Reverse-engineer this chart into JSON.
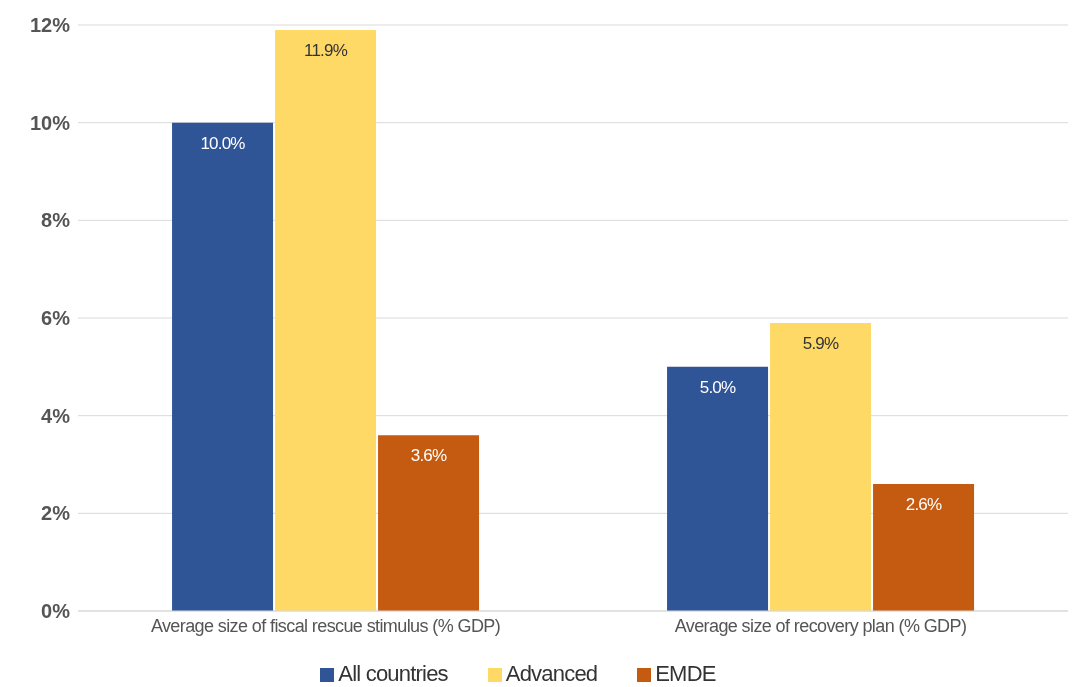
{
  "chart_data": {
    "type": "bar",
    "categories": [
      "Average size of fiscal rescue stimulus (% GDP)",
      "Average size of recovery plan (% GDP)"
    ],
    "series": [
      {
        "name": "All countries",
        "color": "#2f5597",
        "values": [
          10.0,
          5.0
        ],
        "value_labels": [
          "10.0%",
          "5.0%"
        ]
      },
      {
        "name": "Advanced",
        "color": "#ffd966",
        "values": [
          11.9,
          5.9
        ],
        "value_labels": [
          "11.9%",
          "5.9%"
        ]
      },
      {
        "name": "EMDE",
        "color": "#c55a11",
        "values": [
          3.6,
          2.6
        ],
        "value_labels": [
          "3.6%",
          "2.6%"
        ]
      }
    ],
    "ylim": [
      0,
      12
    ],
    "yticks": [
      {
        "value": 0,
        "label": "0%"
      },
      {
        "value": 2,
        "label": "2%"
      },
      {
        "value": 4,
        "label": "4%"
      },
      {
        "value": 6,
        "label": "6%"
      },
      {
        "value": 8,
        "label": "8%"
      },
      {
        "value": 10,
        "label": "10%"
      },
      {
        "value": 12,
        "label": "12%"
      }
    ],
    "grid": "y",
    "legend": "bottom"
  }
}
